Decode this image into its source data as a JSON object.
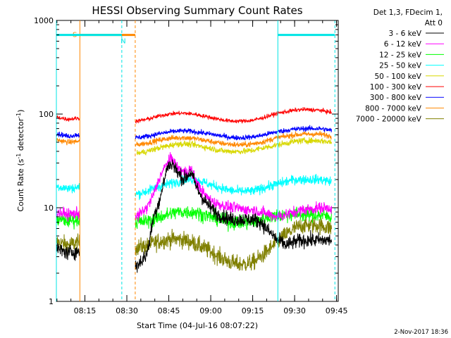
{
  "chart_data": {
    "type": "line",
    "title": "HESSI Observing Summary Count Rates",
    "xlabel": "Start Time (04-Jul-16 08:07:22)",
    "ylabel_main": "Count Rate (s",
    "ylabel_sup1": "-1",
    "ylabel_mid": " detector",
    "ylabel_sup2": "-1",
    "ylabel_end": ")",
    "xlim": [
      8.08,
      9.76
    ],
    "ylim": [
      1,
      1000
    ],
    "yscale": "log",
    "x_ticks": [
      {
        "value": 8.25,
        "label": "08:15"
      },
      {
        "value": 8.5,
        "label": "08:30"
      },
      {
        "value": 8.75,
        "label": "08:45"
      },
      {
        "value": 9.0,
        "label": "09:00"
      },
      {
        "value": 9.25,
        "label": "09:15"
      },
      {
        "value": 9.5,
        "label": "09:30"
      },
      {
        "value": 9.75,
        "label": "09:45"
      }
    ],
    "y_ticks": [
      {
        "value": 1,
        "label": "1"
      },
      {
        "value": 10,
        "label": "10"
      },
      {
        "value": 100,
        "label": "100"
      },
      {
        "value": 1000,
        "label": "1000"
      }
    ],
    "legend_header": [
      "Det 1,3, FDecim 1,",
      "Att 0"
    ],
    "legend_position": "right",
    "timestamp": "2-Nov-2017 18:36",
    "data_gaps": [
      [
        8.22,
        8.55
      ]
    ],
    "series": [
      {
        "name": "3 - 6 keV",
        "color": "#000000",
        "points": [
          [
            8.08,
            3.6
          ],
          [
            8.15,
            3.3
          ],
          [
            8.2,
            3.4
          ],
          [
            8.56,
            2.4
          ],
          [
            8.62,
            3.2
          ],
          [
            8.66,
            8
          ],
          [
            8.7,
            13
          ],
          [
            8.74,
            27
          ],
          [
            8.77,
            30
          ],
          [
            8.8,
            24
          ],
          [
            8.84,
            20
          ],
          [
            8.88,
            24
          ],
          [
            8.92,
            16
          ],
          [
            8.96,
            12
          ],
          [
            9.0,
            10
          ],
          [
            9.04,
            8.5
          ],
          [
            9.08,
            8
          ],
          [
            9.12,
            7.5
          ],
          [
            9.16,
            7.5
          ],
          [
            9.2,
            7.5
          ],
          [
            9.25,
            7.5
          ],
          [
            9.3,
            7
          ],
          [
            9.35,
            5.5
          ],
          [
            9.4,
            4.5
          ],
          [
            9.45,
            4
          ],
          [
            9.5,
            4.3
          ],
          [
            9.55,
            4.5
          ],
          [
            9.65,
            4.5
          ],
          [
            9.72,
            4.5
          ]
        ]
      },
      {
        "name": "6 - 12 keV",
        "color": "#ff00ff",
        "points": [
          [
            8.08,
            9
          ],
          [
            8.15,
            8.5
          ],
          [
            8.2,
            8.7
          ],
          [
            8.56,
            8
          ],
          [
            8.62,
            10
          ],
          [
            8.66,
            14
          ],
          [
            8.7,
            22
          ],
          [
            8.74,
            30
          ],
          [
            8.77,
            34
          ],
          [
            8.8,
            27
          ],
          [
            8.84,
            24
          ],
          [
            8.88,
            26
          ],
          [
            8.92,
            18
          ],
          [
            8.96,
            14
          ],
          [
            9.0,
            12
          ],
          [
            9.04,
            11
          ],
          [
            9.08,
            10.5
          ],
          [
            9.12,
            10
          ],
          [
            9.16,
            10
          ],
          [
            9.2,
            9.5
          ],
          [
            9.25,
            9.5
          ],
          [
            9.3,
            9
          ],
          [
            9.35,
            8.5
          ],
          [
            9.4,
            8
          ],
          [
            9.45,
            8.5
          ],
          [
            9.5,
            9
          ],
          [
            9.55,
            9.5
          ],
          [
            9.65,
            10
          ],
          [
            9.72,
            10
          ]
        ]
      },
      {
        "name": "12 - 25 keV",
        "color": "#00ff00",
        "points": [
          [
            8.08,
            7.5
          ],
          [
            8.15,
            7.3
          ],
          [
            8.2,
            7.4
          ],
          [
            8.56,
            7
          ],
          [
            8.62,
            7.2
          ],
          [
            8.66,
            7.5
          ],
          [
            8.7,
            8
          ],
          [
            8.75,
            8.5
          ],
          [
            8.8,
            9
          ],
          [
            8.85,
            9
          ],
          [
            8.9,
            9
          ],
          [
            8.95,
            8.5
          ],
          [
            9.0,
            8
          ],
          [
            9.05,
            7.5
          ],
          [
            9.1,
            7
          ],
          [
            9.15,
            7
          ],
          [
            9.2,
            7
          ],
          [
            9.25,
            7
          ],
          [
            9.3,
            7.5
          ],
          [
            9.35,
            8
          ],
          [
            9.4,
            8.2
          ],
          [
            9.45,
            8.5
          ],
          [
            9.5,
            8.5
          ],
          [
            9.55,
            8.5
          ],
          [
            9.65,
            8.3
          ],
          [
            9.72,
            8
          ]
        ]
      },
      {
        "name": "25 - 50 keV",
        "color": "#00ffff",
        "points": [
          [
            8.08,
            17
          ],
          [
            8.15,
            16
          ],
          [
            8.2,
            16.5
          ],
          [
            8.56,
            14
          ],
          [
            8.62,
            15
          ],
          [
            8.66,
            16
          ],
          [
            8.7,
            17
          ],
          [
            8.75,
            18
          ],
          [
            8.8,
            19
          ],
          [
            8.85,
            20
          ],
          [
            8.9,
            20
          ],
          [
            8.95,
            19
          ],
          [
            9.0,
            17.5
          ],
          [
            9.05,
            16.5
          ],
          [
            9.1,
            15.5
          ],
          [
            9.15,
            15
          ],
          [
            9.2,
            15
          ],
          [
            9.25,
            15
          ],
          [
            9.3,
            16
          ],
          [
            9.35,
            17
          ],
          [
            9.4,
            18
          ],
          [
            9.45,
            19
          ],
          [
            9.5,
            20
          ],
          [
            9.55,
            20
          ],
          [
            9.65,
            20
          ],
          [
            9.72,
            19
          ]
        ]
      },
      {
        "name": "50 - 100 keV",
        "color": "#d8d800",
        "points": [
          [
            8.56,
            38
          ],
          [
            8.62,
            40
          ],
          [
            8.66,
            42
          ],
          [
            8.7,
            44
          ],
          [
            8.75,
            46
          ],
          [
            8.8,
            48
          ],
          [
            8.85,
            48
          ],
          [
            8.9,
            47
          ],
          [
            8.95,
            45
          ],
          [
            9.0,
            43
          ],
          [
            9.05,
            41
          ],
          [
            9.1,
            40
          ],
          [
            9.15,
            40
          ],
          [
            9.2,
            40
          ],
          [
            9.25,
            41
          ],
          [
            9.3,
            43
          ],
          [
            9.35,
            45
          ],
          [
            9.4,
            47
          ],
          [
            9.45,
            49
          ],
          [
            9.5,
            51
          ],
          [
            9.55,
            52
          ],
          [
            9.65,
            52
          ],
          [
            9.72,
            50
          ]
        ]
      },
      {
        "name": "100 - 300 keV",
        "color": "#ff0000",
        "points": [
          [
            8.08,
            93
          ],
          [
            8.15,
            88
          ],
          [
            8.2,
            90
          ],
          [
            8.56,
            84
          ],
          [
            8.62,
            88
          ],
          [
            8.66,
            92
          ],
          [
            8.7,
            96
          ],
          [
            8.75,
            100
          ],
          [
            8.8,
            102
          ],
          [
            8.85,
            102
          ],
          [
            8.9,
            100
          ],
          [
            8.95,
            96
          ],
          [
            9.0,
            92
          ],
          [
            9.05,
            88
          ],
          [
            9.1,
            85
          ],
          [
            9.15,
            84
          ],
          [
            9.2,
            84
          ],
          [
            9.25,
            86
          ],
          [
            9.3,
            90
          ],
          [
            9.35,
            96
          ],
          [
            9.4,
            102
          ],
          [
            9.45,
            106
          ],
          [
            9.5,
            110
          ],
          [
            9.55,
            112
          ],
          [
            9.65,
            110
          ],
          [
            9.72,
            104
          ]
        ]
      },
      {
        "name": "300 - 800 keV",
        "color": "#0000ff",
        "points": [
          [
            8.08,
            62
          ],
          [
            8.15,
            58
          ],
          [
            8.2,
            60
          ],
          [
            8.56,
            56
          ],
          [
            8.62,
            58
          ],
          [
            8.66,
            60
          ],
          [
            8.7,
            62
          ],
          [
            8.75,
            64
          ],
          [
            8.8,
            66
          ],
          [
            8.85,
            66
          ],
          [
            8.9,
            65
          ],
          [
            8.95,
            63
          ],
          [
            9.0,
            61
          ],
          [
            9.05,
            59
          ],
          [
            9.1,
            57
          ],
          [
            9.15,
            56
          ],
          [
            9.2,
            56
          ],
          [
            9.25,
            57
          ],
          [
            9.3,
            59
          ],
          [
            9.35,
            62
          ],
          [
            9.4,
            65
          ],
          [
            9.45,
            67
          ],
          [
            9.5,
            69
          ],
          [
            9.55,
            70
          ],
          [
            9.65,
            70
          ],
          [
            9.72,
            67
          ]
        ]
      },
      {
        "name": "800 - 7000 keV",
        "color": "#ff8800",
        "points": [
          [
            8.08,
            53
          ],
          [
            8.15,
            50
          ],
          [
            8.2,
            51
          ],
          [
            8.56,
            47
          ],
          [
            8.62,
            49
          ],
          [
            8.66,
            51
          ],
          [
            8.7,
            53
          ],
          [
            8.75,
            55
          ],
          [
            8.8,
            56
          ],
          [
            8.85,
            56
          ],
          [
            8.9,
            55
          ],
          [
            8.95,
            53
          ],
          [
            9.0,
            51
          ],
          [
            9.05,
            49
          ],
          [
            9.1,
            48
          ],
          [
            9.15,
            47
          ],
          [
            9.2,
            47
          ],
          [
            9.25,
            48
          ],
          [
            9.3,
            50
          ],
          [
            9.35,
            53
          ],
          [
            9.4,
            56
          ],
          [
            9.45,
            58
          ],
          [
            9.5,
            60
          ],
          [
            9.55,
            61
          ],
          [
            9.65,
            61
          ],
          [
            9.72,
            58
          ]
        ]
      },
      {
        "name": "7000 - 20000 keV",
        "color": "#808000",
        "points": [
          [
            8.08,
            4.3
          ],
          [
            8.15,
            4
          ],
          [
            8.2,
            4.2
          ],
          [
            8.56,
            3.8
          ],
          [
            8.62,
            3.9
          ],
          [
            8.66,
            4.2
          ],
          [
            8.7,
            4.4
          ],
          [
            8.75,
            4.6
          ],
          [
            8.8,
            4.6
          ],
          [
            8.85,
            4.5
          ],
          [
            8.9,
            4.2
          ],
          [
            8.95,
            3.8
          ],
          [
            9.0,
            3.4
          ],
          [
            9.05,
            3
          ],
          [
            9.1,
            2.7
          ],
          [
            9.15,
            2.5
          ],
          [
            9.2,
            2.5
          ],
          [
            9.25,
            2.6
          ],
          [
            9.3,
            3
          ],
          [
            9.35,
            3.6
          ],
          [
            9.4,
            4.4
          ],
          [
            9.45,
            5.2
          ],
          [
            9.5,
            6
          ],
          [
            9.55,
            6.5
          ],
          [
            9.65,
            6.5
          ],
          [
            9.72,
            6
          ]
        ]
      }
    ],
    "annotations": [
      {
        "kind": "flag",
        "label": "S",
        "color": "#ff8800",
        "x_start": 8.22,
        "x_end": 8.55,
        "y": 700
      },
      {
        "kind": "flag",
        "label": "N",
        "color": "#00e5e5",
        "x_start": 8.08,
        "x_end": 8.47,
        "y": 700
      },
      {
        "kind": "flag",
        "label": "",
        "color": "#00e5e5",
        "x_start": 9.4,
        "x_end": 9.74,
        "y": 700
      }
    ],
    "vlines": [
      {
        "x": 8.08,
        "color": "#00e5e5",
        "style": "solid"
      },
      {
        "x": 8.22,
        "color": "#ff8800",
        "style": "solid"
      },
      {
        "x": 8.47,
        "color": "#00e5e5",
        "style": "dashed"
      },
      {
        "x": 8.55,
        "color": "#ff8800",
        "style": "dashed"
      },
      {
        "x": 9.4,
        "color": "#00e5e5",
        "style": "solid"
      },
      {
        "x": 9.74,
        "color": "#00e5e5",
        "style": "dashed"
      }
    ]
  }
}
